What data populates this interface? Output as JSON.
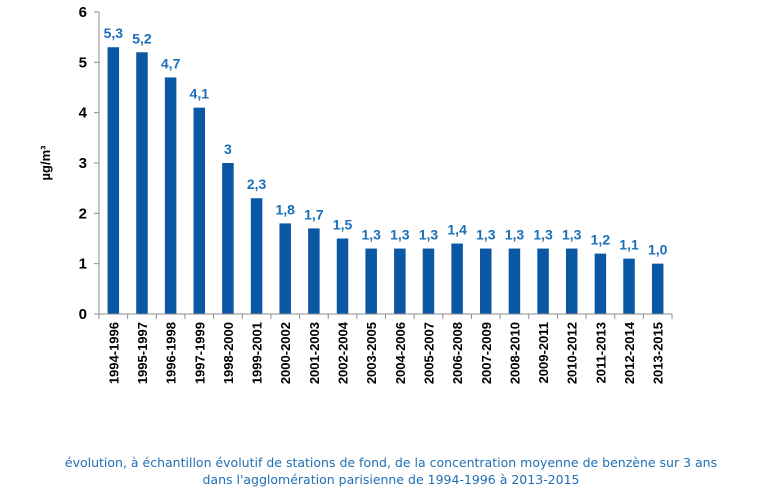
{
  "chart_data": {
    "type": "bar",
    "categories": [
      "1994-1996",
      "1995-1997",
      "1996-1998",
      "1997-1999",
      "1998-2000",
      "1999-2001",
      "2000-2002",
      "2001-2003",
      "2002-2004",
      "2003-2005",
      "2004-2006",
      "2005-2007",
      "2006-2008",
      "2007-2009",
      "2008-2010",
      "2009-2011",
      "2010-2012",
      "2011-2013",
      "2012-2014",
      "2013-2015"
    ],
    "values": [
      5.3,
      5.2,
      4.7,
      4.1,
      3.0,
      2.3,
      1.8,
      1.7,
      1.5,
      1.3,
      1.3,
      1.3,
      1.4,
      1.3,
      1.3,
      1.3,
      1.3,
      1.2,
      1.1,
      1.0
    ],
    "data_labels": [
      "5,3",
      "5,2",
      "4,7",
      "4,1",
      "3",
      "2,3",
      "1,8",
      "1,7",
      "1,5",
      "1,3",
      "1,3",
      "1,3",
      "1,4",
      "1,3",
      "1,3",
      "1,3",
      "1,3",
      "1,2",
      "1,1",
      "1,0"
    ],
    "ylabel": "µg/m³",
    "ylim": [
      0,
      6
    ],
    "yticks": [
      "0",
      "1",
      "2",
      "3",
      "4",
      "5",
      "6"
    ],
    "grid": false,
    "bar_color": "#0a57a3",
    "label_color": "#1a6fb8"
  },
  "caption": {
    "line1": "évolution, à échantillon évolutif de stations de fond, de la concentration moyenne de benzène sur 3 ans",
    "line2": "dans l'agglomération parisienne de 1994-1996 à 2013-2015"
  }
}
